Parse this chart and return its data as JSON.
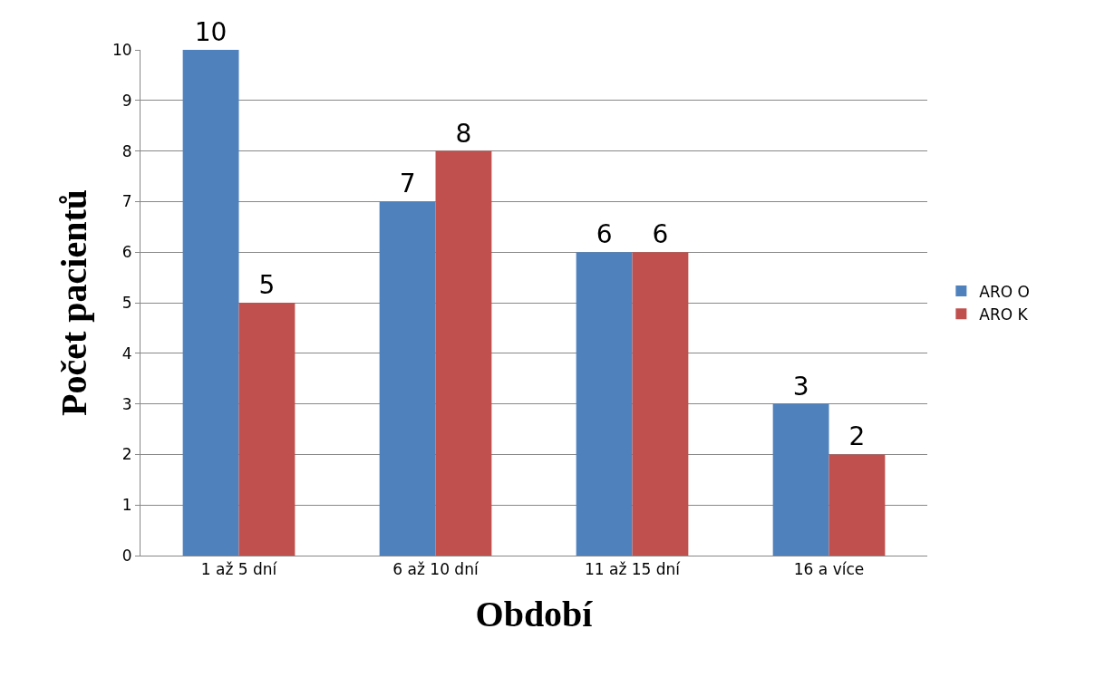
{
  "chart_data": {
    "type": "bar",
    "xlabel": "Období",
    "ylabel": "Počet pacientů",
    "categories": [
      "1 až 5 dní",
      "6 až 10 dní",
      "11 až 15 dní",
      "16 a více"
    ],
    "series": [
      {
        "name": "ARO O",
        "color": "#4f81bd",
        "values": [
          10,
          7,
          6,
          3
        ]
      },
      {
        "name": "ARO K",
        "color": "#c0504d",
        "values": [
          5,
          8,
          6,
          2
        ]
      }
    ],
    "ylim": [
      0,
      10
    ],
    "yticks": [
      0,
      1,
      2,
      3,
      4,
      5,
      6,
      7,
      8,
      9,
      10
    ],
    "grid": "y",
    "legend": "right",
    "data_labels": true
  }
}
